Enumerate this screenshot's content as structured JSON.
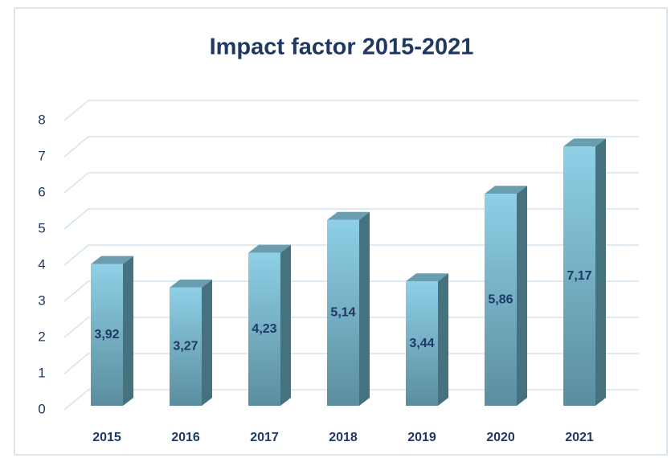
{
  "chart_data": {
    "type": "bar",
    "title": "Impact factor 2015-2021",
    "categories": [
      "2015",
      "2016",
      "2017",
      "2018",
      "2019",
      "2020",
      "2021"
    ],
    "values": [
      3.92,
      3.27,
      4.23,
      5.14,
      3.44,
      5.86,
      7.17
    ],
    "value_labels": [
      "3,92",
      "3,27",
      "4,23",
      "5,14",
      "3,44",
      "5,86",
      "7,17"
    ],
    "color": "#7fc4dc",
    "ylim": [
      0,
      8
    ],
    "yticks": [
      0,
      1,
      2,
      3,
      4,
      5,
      6,
      7,
      8
    ],
    "grid": true
  }
}
